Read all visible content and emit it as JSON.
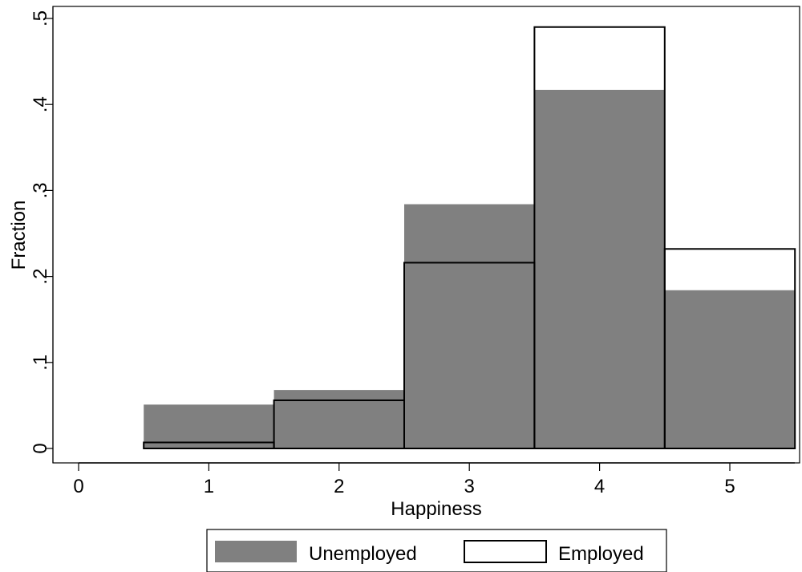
{
  "chart_data": {
    "type": "bar",
    "title": "",
    "xlabel": "Happiness",
    "ylabel": "Fraction",
    "categories": [
      1,
      2,
      3,
      4,
      5
    ],
    "xlim": [
      0,
      5.5
    ],
    "ylim": [
      0,
      0.5
    ],
    "x_ticks": [
      0,
      1,
      2,
      3,
      4,
      5
    ],
    "x_tick_labels": [
      "0",
      "1",
      "2",
      "3",
      "4",
      "5"
    ],
    "y_ticks": [
      0,
      0.1,
      0.2,
      0.3,
      0.4,
      0.5
    ],
    "y_tick_labels": [
      "0",
      ".1",
      ".2",
      ".3",
      ".4",
      ".5"
    ],
    "grid": false,
    "legend_position": "bottom",
    "series": [
      {
        "name": "Unemployed",
        "style": "filled",
        "color": "#808080",
        "values": [
          0.051,
          0.068,
          0.284,
          0.417,
          0.184
        ]
      },
      {
        "name": "Employed",
        "style": "outline",
        "color": "#000000",
        "values": [
          0.007,
          0.056,
          0.216,
          0.49,
          0.232
        ]
      }
    ]
  }
}
